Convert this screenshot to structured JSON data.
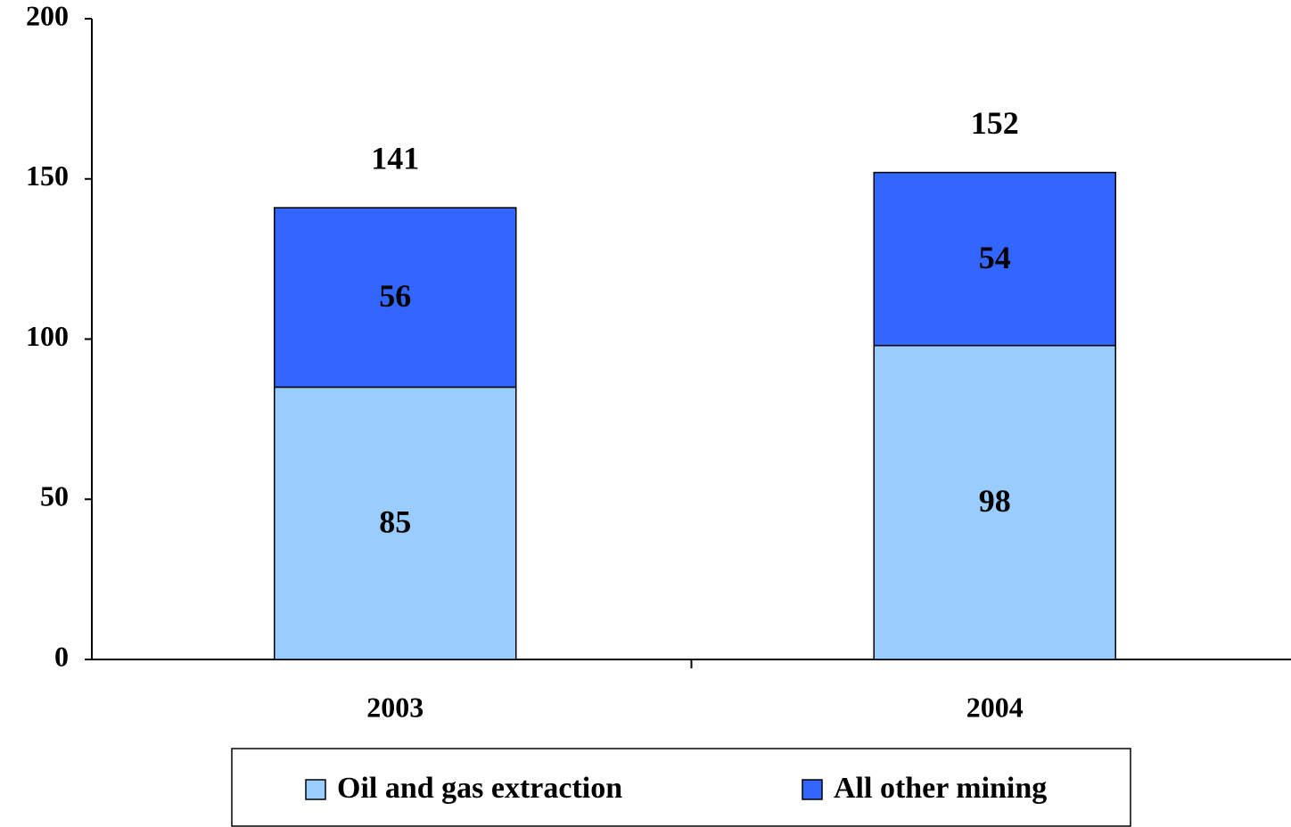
{
  "chart_data": {
    "type": "stacked_bar",
    "categories": [
      "2003",
      "2004"
    ],
    "series": [
      {
        "name": "Oil and gas extraction",
        "color": "#99ccff",
        "values": [
          85,
          98
        ]
      },
      {
        "name": "All other mining",
        "color": "#3366ff",
        "values": [
          56,
          54
        ]
      }
    ],
    "totals": [
      141,
      152
    ],
    "ylim": [
      0,
      200
    ],
    "yticks": [
      0,
      50,
      100,
      150,
      200
    ],
    "legend": "bottom"
  }
}
